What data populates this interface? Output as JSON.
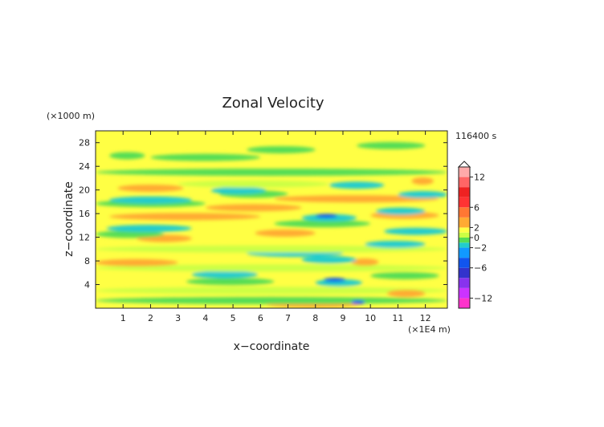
{
  "chart_data": {
    "type": "heatmap",
    "title": "Zonal Velocity",
    "xlabel": "x−coordinate",
    "ylabel": "z−coordinate",
    "x_unit": "(×1E4 m)",
    "y_unit": "(×1000 m)",
    "time_label": "116400 s",
    "xlim": [
      0,
      12.8
    ],
    "ylim": [
      0,
      30
    ],
    "x_ticks": [
      "1",
      "2",
      "3",
      "4",
      "5",
      "6",
      "7",
      "8",
      "9",
      "10",
      "11",
      "12"
    ],
    "y_ticks": [
      "4",
      "8",
      "12",
      "16",
      "20",
      "24",
      "28"
    ],
    "colorbar": {
      "ticks": [
        "12",
        "6",
        "2",
        "0",
        "−2",
        "−6",
        "−12"
      ],
      "levels": [
        -14,
        -12,
        -10,
        -8,
        -6,
        -4,
        -2,
        -1,
        0,
        1,
        2,
        4,
        6,
        8,
        10,
        12,
        14
      ],
      "colors": [
        "#ff33cc",
        "#cc33ff",
        "#8833ee",
        "#3333cc",
        "#1155ee",
        "#1199ff",
        "#22cccc",
        "#55dd55",
        "#ccff44",
        "#ffff44",
        "#ffaa33",
        "#ff7733",
        "#ff3333",
        "#ee2222",
        "#ff6666",
        "#ffaaaa"
      ]
    },
    "bands": [
      {
        "z": 0.7,
        "x0": 6.2,
        "x1": 9.6,
        "v": 3
      },
      {
        "z": 1.3,
        "x0": 0.0,
        "x1": 12.8,
        "v": -0.5
      },
      {
        "z": 1.0,
        "x0": 9.3,
        "x1": 9.8,
        "v": -5
      },
      {
        "z": 3.0,
        "x0": 0.0,
        "x1": 12.8,
        "v": 0.5
      },
      {
        "z": 2.5,
        "x0": 10.6,
        "x1": 12.0,
        "v": 3
      },
      {
        "z": 4.3,
        "x0": 8.0,
        "x1": 9.7,
        "v": -2
      },
      {
        "z": 4.5,
        "x0": 3.3,
        "x1": 6.5,
        "v": -0.5
      },
      {
        "z": 4.8,
        "x0": 8.3,
        "x1": 9.1,
        "v": -5
      },
      {
        "z": 5.7,
        "x0": 3.5,
        "x1": 5.9,
        "v": -2
      },
      {
        "z": 5.5,
        "x0": 10.0,
        "x1": 12.5,
        "v": -0.5
      },
      {
        "z": 6.8,
        "x0": 0.0,
        "x1": 12.8,
        "v": 0.5
      },
      {
        "z": 7.7,
        "x0": 0.0,
        "x1": 3.0,
        "v": 3
      },
      {
        "z": 7.8,
        "x0": 9.3,
        "x1": 10.3,
        "v": 3
      },
      {
        "z": 8.2,
        "x0": 7.5,
        "x1": 9.5,
        "v": -2
      },
      {
        "z": 9.3,
        "x0": 5.5,
        "x1": 9.0,
        "v": -2
      },
      {
        "z": 10.0,
        "x0": 0.0,
        "x1": 12.8,
        "v": 0.5
      },
      {
        "z": 10.8,
        "x0": 9.8,
        "x1": 12.0,
        "v": -2
      },
      {
        "z": 11.8,
        "x0": 1.5,
        "x1": 3.5,
        "v": 3
      },
      {
        "z": 12.7,
        "x0": 5.8,
        "x1": 8.0,
        "v": 3
      },
      {
        "z": 12.5,
        "x0": 0.0,
        "x1": 2.5,
        "v": -0.5
      },
      {
        "z": 13.5,
        "x0": 0.4,
        "x1": 3.5,
        "v": -2
      },
      {
        "z": 13.0,
        "x0": 10.5,
        "x1": 12.8,
        "v": -2
      },
      {
        "z": 14.3,
        "x0": 6.5,
        "x1": 10.0,
        "v": -0.5
      },
      {
        "z": 15.5,
        "x0": 0.5,
        "x1": 6.0,
        "v": 3
      },
      {
        "z": 15.3,
        "x0": 7.5,
        "x1": 9.5,
        "v": -2
      },
      {
        "z": 15.6,
        "x0": 8.0,
        "x1": 8.8,
        "v": -6
      },
      {
        "z": 15.7,
        "x0": 10.0,
        "x1": 12.5,
        "v": 3
      },
      {
        "z": 16.4,
        "x0": 10.2,
        "x1": 12.0,
        "v": -2
      },
      {
        "z": 17.0,
        "x0": 4.0,
        "x1": 7.5,
        "v": 3
      },
      {
        "z": 17.7,
        "x0": 0.0,
        "x1": 4.0,
        "v": -0.5
      },
      {
        "z": 18.3,
        "x0": 0.5,
        "x1": 3.5,
        "v": -2
      },
      {
        "z": 18.5,
        "x0": 6.5,
        "x1": 12.5,
        "v": 3
      },
      {
        "z": 19.3,
        "x0": 4.5,
        "x1": 7.0,
        "v": -0.5
      },
      {
        "z": 20.3,
        "x0": 0.8,
        "x1": 3.2,
        "v": 3
      },
      {
        "z": 19.9,
        "x0": 4.2,
        "x1": 6.2,
        "v": -2
      },
      {
        "z": 20.8,
        "x0": 8.5,
        "x1": 10.5,
        "v": -2
      },
      {
        "z": 19.2,
        "x0": 11.0,
        "x1": 12.8,
        "v": -2
      },
      {
        "z": 21.0,
        "x0": 3.0,
        "x1": 8.5,
        "v": 0.5
      },
      {
        "z": 21.5,
        "x0": 11.5,
        "x1": 12.3,
        "v": 3
      },
      {
        "z": 23.0,
        "x0": 0.0,
        "x1": 12.8,
        "v": -0.5
      },
      {
        "z": 25.5,
        "x0": 2.0,
        "x1": 6.0,
        "v": -0.5
      },
      {
        "z": 26.8,
        "x0": 5.5,
        "x1": 8.0,
        "v": -0.5
      },
      {
        "z": 27.5,
        "x0": 9.5,
        "x1": 12.0,
        "v": -0.5
      },
      {
        "z": 25.8,
        "x0": 0.5,
        "x1": 1.8,
        "v": -0.5
      }
    ]
  }
}
